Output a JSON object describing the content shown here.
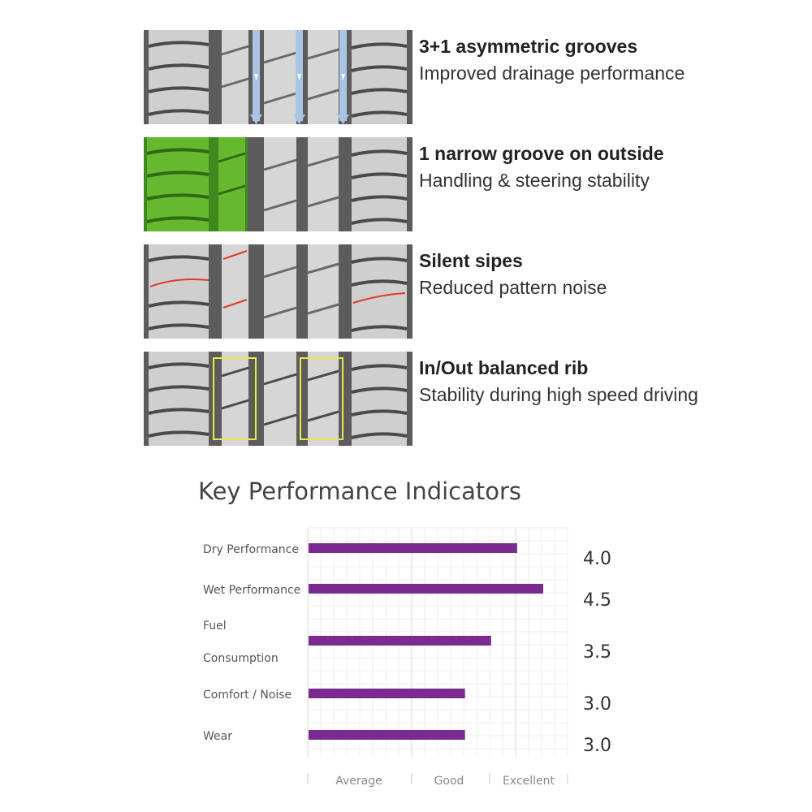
{
  "features": [
    {
      "id": "grooves",
      "title": "3+1 asymmetric grooves",
      "desc": "Improved drainage performance"
    },
    {
      "id": "narrow",
      "title": "1 narrow groove on outside",
      "desc": "Handling & steering stability"
    },
    {
      "id": "sipes",
      "title": "Silent sipes",
      "desc": "Reduced pattern noise"
    },
    {
      "id": "rib",
      "title": "In/Out balanced rib",
      "desc": "Stability during high speed driving"
    }
  ],
  "kpi": {
    "title": "Key Performance Indicators"
  },
  "chart_data": {
    "type": "bar",
    "orientation": "horizontal",
    "title": "Key Performance Indicators",
    "categories": [
      "Dry Performance",
      "Wet Performance",
      "Fuel Consumption",
      "Comfort / Noise",
      "Wear"
    ],
    "category_lines": [
      [
        "Dry Performance"
      ],
      [
        "Wet Performance"
      ],
      [
        "Fuel",
        "Consumption"
      ],
      [
        "Comfort / Noise"
      ],
      [
        "Wear"
      ]
    ],
    "values": [
      4.0,
      4.5,
      3.5,
      3.0,
      3.0
    ],
    "value_labels": [
      "4.0",
      "4.5",
      "3.5",
      "3.0",
      "3.0"
    ],
    "xlim": [
      0,
      5
    ],
    "x_tick_labels": [
      "Average",
      "Good",
      "Excellent"
    ],
    "bar_color": "#7b2a90",
    "grid": true
  },
  "colors": {
    "tread_rubber": "#5c5c5c",
    "tread_rib": "#cfcfcf",
    "water_arrow": "#a9c4e4",
    "green_highlight": "#66b82e",
    "sipe_red": "#e03a2c",
    "rib_box_yellow": "#e8e84a"
  }
}
